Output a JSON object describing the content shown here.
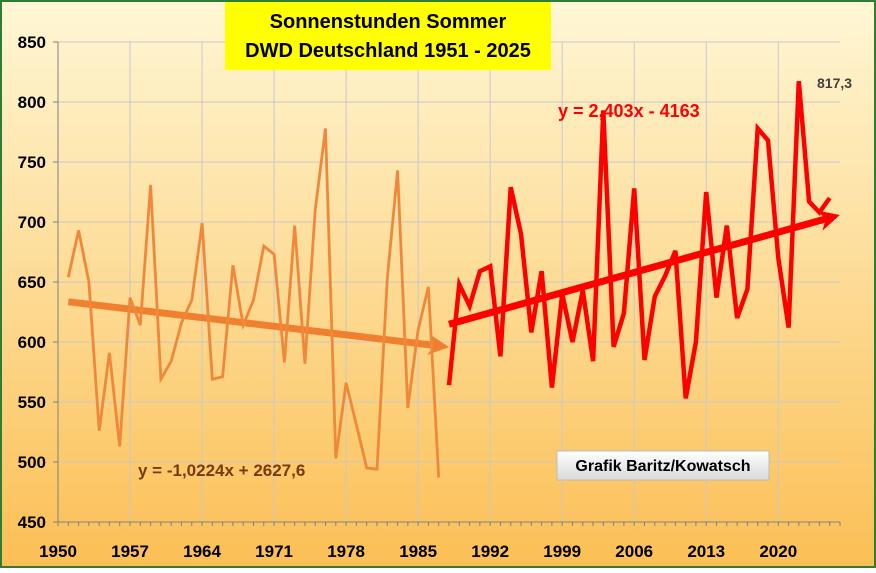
{
  "chart_data": {
    "type": "line",
    "title_lines": [
      "Sonnenstunden Sommer",
      "DWD Deutschland 1951 - 2025"
    ],
    "xlabel": "",
    "ylabel": "",
    "xlim": [
      1950,
      2026
    ],
    "ylim": [
      450,
      850
    ],
    "x_ticks": [
      1950,
      1957,
      1964,
      1971,
      1978,
      1985,
      1992,
      1999,
      2006,
      2013,
      2020
    ],
    "y_ticks": [
      450,
      500,
      550,
      600,
      650,
      700,
      750,
      800,
      850
    ],
    "grid": {
      "horizontal": true,
      "vertical": true
    },
    "series": [
      {
        "color": "#f0883c",
        "x": [
          1951,
          1952,
          1953,
          1954,
          1955,
          1956,
          1957,
          1958,
          1959,
          1960,
          1961,
          1962,
          1963,
          1964,
          1965,
          1966,
          1967,
          1968,
          1969,
          1970,
          1971,
          1972,
          1973,
          1974,
          1975,
          1976,
          1977,
          1978,
          1979,
          1980,
          1981,
          1982,
          1983,
          1984,
          1985,
          1986,
          1987
        ],
        "values": [
          654,
          693,
          650,
          526,
          591,
          513,
          637,
          614,
          731,
          569,
          584,
          616,
          635,
          699,
          569,
          571,
          664,
          614,
          635,
          680,
          673,
          583,
          697,
          582,
          710,
          778,
          503,
          566,
          531,
          495,
          494,
          653,
          743,
          545,
          610,
          646,
          487
        ]
      },
      {
        "color": "#ff0000",
        "x": [
          1988,
          1989,
          1990,
          1991,
          1992,
          1993,
          1994,
          1995,
          1996,
          1997,
          1998,
          1999,
          2000,
          2001,
          2002,
          2003,
          2004,
          2005,
          2006,
          2007,
          2008,
          2009,
          2010,
          2011,
          2012,
          2013,
          2014,
          2015,
          2016,
          2017,
          2018,
          2019,
          2020,
          2021,
          2022,
          2023,
          2024,
          2025
        ],
        "values": [
          564,
          648,
          630,
          659,
          663,
          588,
          729,
          690,
          608,
          659,
          562,
          640,
          600,
          643,
          584,
          793,
          596,
          624,
          728,
          585,
          638,
          655,
          676,
          553,
          600,
          725,
          637,
          697,
          620,
          644,
          778,
          768,
          670,
          612,
          817.3,
          717,
          708,
          720
        ]
      }
    ],
    "trendlines": [
      {
        "equation": "y = -1,0224x + 2627,6",
        "color": "#f08030",
        "text_color": "#7a3a10",
        "x": [
          1951,
          1987
        ],
        "values": [
          633.5,
          596.8
        ]
      },
      {
        "equation": "y = 2,403x - 4163",
        "color": "#ff0000",
        "text_color": "#ff0000",
        "x": [
          1988,
          2025
        ],
        "values": [
          614.8,
          703.5
        ]
      }
    ],
    "annotations": [
      {
        "text": "817,3",
        "x": 2022,
        "y": 817.3
      },
      {
        "text": "Grafik Baritz/Kowatsch"
      }
    ],
    "colors": {
      "title_box": "#ffff00",
      "plot_gradient_top": "#fff7d6",
      "plot_gradient_bottom": "#fbbf54",
      "grid": "#c8c8c8",
      "border": "#2e7d32"
    }
  }
}
